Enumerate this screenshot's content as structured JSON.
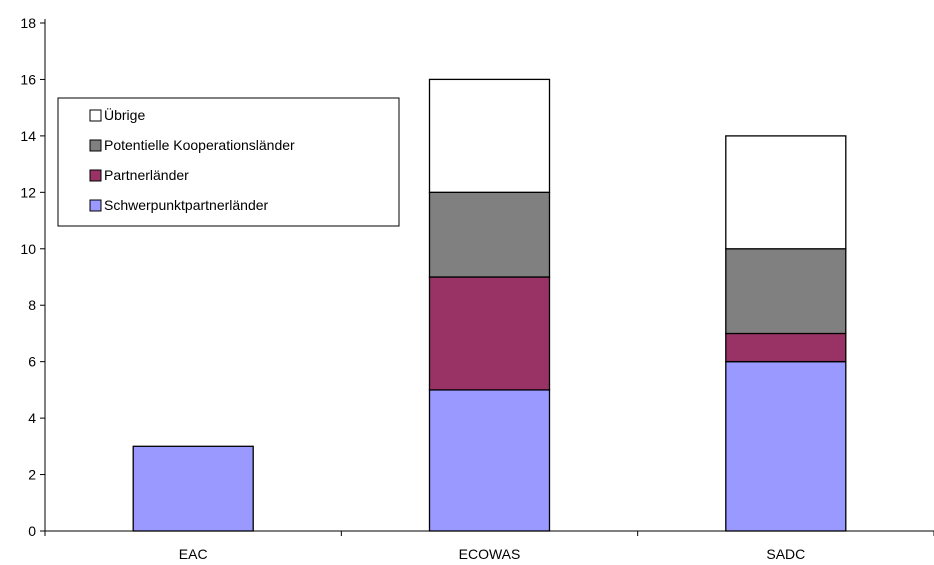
{
  "chart_data": {
    "type": "bar",
    "stacked": true,
    "categories": [
      "EAC",
      "ECOWAS",
      "SADC"
    ],
    "series": [
      {
        "name": "Schwerpunktpartnerländer",
        "values": [
          3,
          5,
          6
        ],
        "color": "#9999ff"
      },
      {
        "name": "Partnerländer",
        "values": [
          0,
          4,
          1
        ],
        "color": "#993366"
      },
      {
        "name": "Potentielle Kooperationsländer",
        "values": [
          0,
          3,
          3
        ],
        "color": "#808080"
      },
      {
        "name": "Übrige",
        "values": [
          0,
          4,
          4
        ],
        "color": "#ffffff"
      }
    ],
    "legend_order": [
      "Übrige",
      "Potentielle Kooperationsländer",
      "Partnerländer",
      "Schwerpunktpartnerländer"
    ],
    "yticks": [
      0,
      2,
      4,
      6,
      8,
      10,
      12,
      14,
      16,
      18
    ],
    "ylim": [
      0,
      18
    ],
    "grid": false,
    "legend_position": "top-left",
    "title": "",
    "xlabel": "",
    "ylabel": ""
  }
}
